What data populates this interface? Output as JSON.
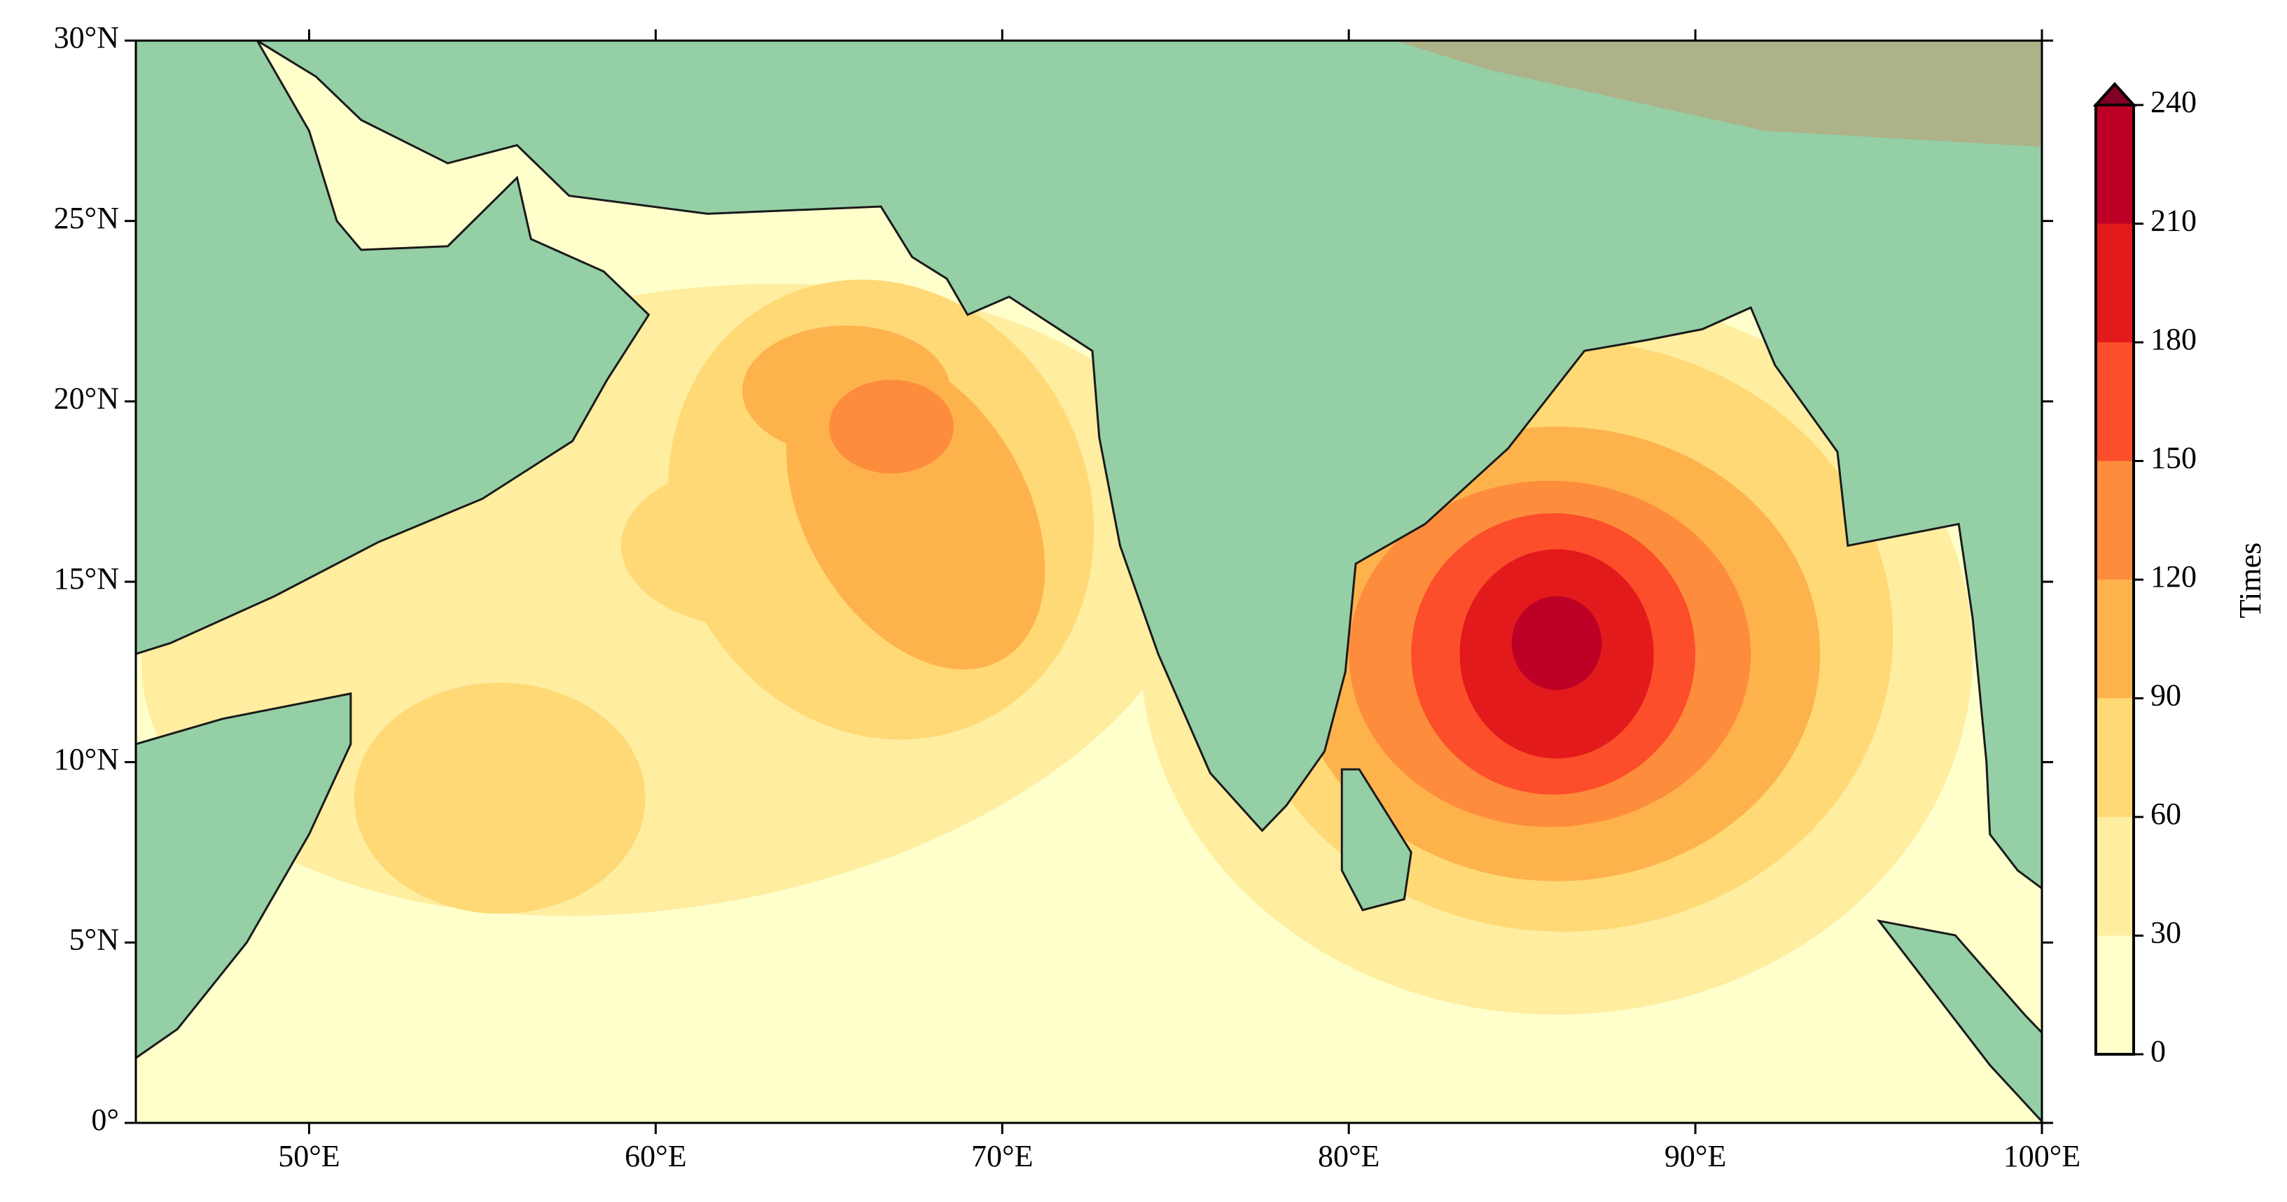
{
  "chart_data": {
    "type": "map",
    "xlim": [
      45,
      100
    ],
    "ylim": [
      0,
      30
    ],
    "xticks": [
      {
        "value": 50,
        "label": "50°E"
      },
      {
        "value": 60,
        "label": "60°E"
      },
      {
        "value": 70,
        "label": "70°E"
      },
      {
        "value": 80,
        "label": "80°E"
      },
      {
        "value": 90,
        "label": "90°E"
      },
      {
        "value": 100,
        "label": "100°E"
      }
    ],
    "yticks": [
      {
        "value": 0,
        "label": "0°"
      },
      {
        "value": 5,
        "label": "5°N"
      },
      {
        "value": 10,
        "label": "10°N"
      },
      {
        "value": 15,
        "label": "15°N"
      },
      {
        "value": 20,
        "label": "20°N"
      },
      {
        "value": 25,
        "label": "25°N"
      },
      {
        "value": 30,
        "label": "30°N"
      }
    ],
    "colorbar": {
      "label": "Times",
      "ticks": [
        0,
        30,
        60,
        90,
        120,
        150,
        180,
        210,
        240
      ],
      "colors": [
        "#ffffcc",
        "#ffeda0",
        "#fed976",
        "#feb24c",
        "#fd8d3c",
        "#fc4e2a",
        "#e31a1c",
        "#bd0026"
      ],
      "extend_color": "#800026"
    }
  }
}
